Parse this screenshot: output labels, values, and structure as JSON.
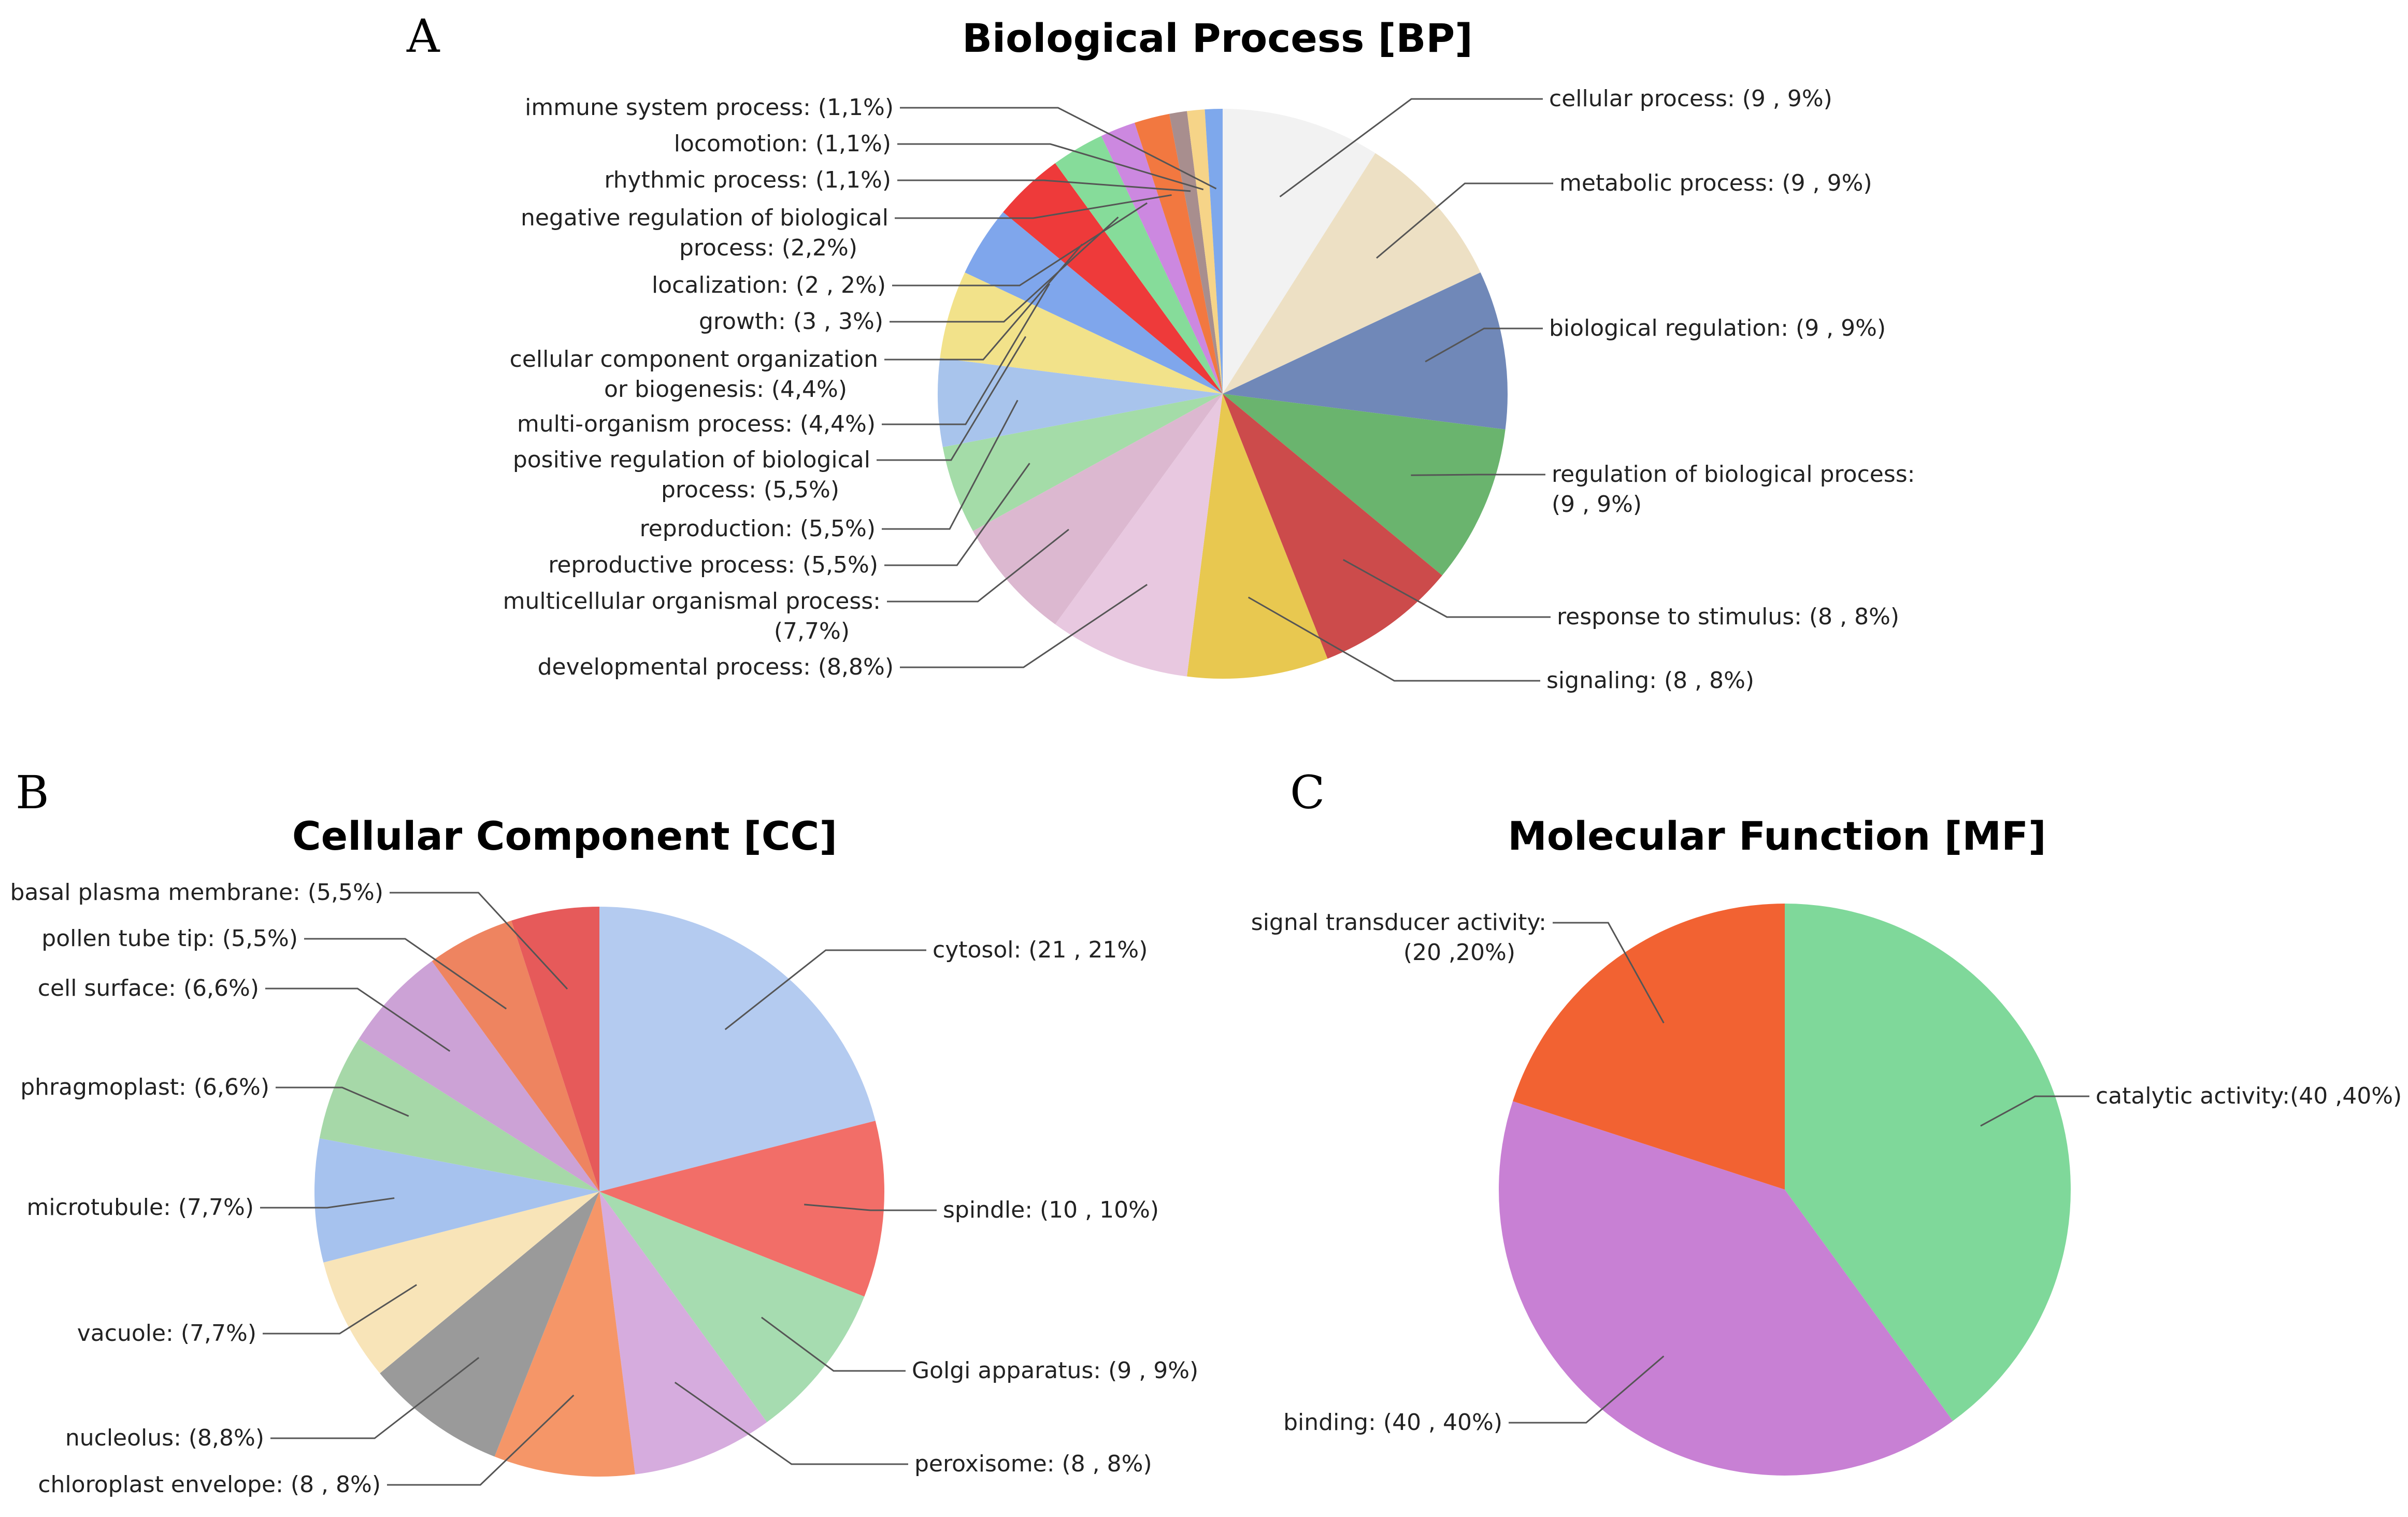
{
  "panel_letters": [
    "A",
    "B",
    "C"
  ],
  "chart_data": [
    {
      "type": "pie",
      "title": "Biological Process [BP]",
      "slices": [
        {
          "label": "cellular process: (9 , 9%)",
          "value": 9,
          "color": "#f2f2f2"
        },
        {
          "label": "metabolic process: (9 , 9%)",
          "value": 9,
          "color": "#ede0c4"
        },
        {
          "label": "biological regulation: (9 , 9%)",
          "value": 9,
          "color": "#7088b8"
        },
        {
          "label": "regulation of biological process:\n(9 , 9%)",
          "value": 9,
          "color": "#6ab46e"
        },
        {
          "label": "response to stimulus: (8 , 8%)",
          "value": 8,
          "color": "#cc4b4b"
        },
        {
          "label": "signaling: (8 , 8%)",
          "value": 8,
          "color": "#e8c850"
        },
        {
          "label": "developmental process: (8,8%)",
          "value": 8,
          "color": "#e8c8e0"
        },
        {
          "label": "multicellular organismal process:\n(7,7%)",
          "value": 7,
          "color": "#dcb8d0"
        },
        {
          "label": "reproductive process: (5,5%)",
          "value": 5,
          "color": "#a4dca8"
        },
        {
          "label": "reproduction: (5,5%)",
          "value": 5,
          "color": "#a8c4ec"
        },
        {
          "label": "positive regulation of biological\nprocess: (5,5%)",
          "value": 5,
          "color": "#f2e28a"
        },
        {
          "label": "multi-organism process: (4,4%)",
          "value": 4,
          "color": "#7fa6ec"
        },
        {
          "label": "cellular component organization\nor biogenesis: (4,4%)",
          "value": 4,
          "color": "#ee3a3a"
        },
        {
          "label": "growth: (3 , 3%)",
          "value": 3,
          "color": "#86dc9a"
        },
        {
          "label": "localization: (2 , 2%)",
          "value": 2,
          "color": "#cc88e0"
        },
        {
          "label": "negative regulation of biological\nprocess: (2,2%)",
          "value": 2,
          "color": "#f27840"
        },
        {
          "label": "rhythmic process: (1,1%)",
          "value": 1,
          "color": "#a88e8e"
        },
        {
          "label": "locomotion: (1,1%)",
          "value": 1,
          "color": "#f6d488"
        },
        {
          "label": "immune system process: (1,1%)",
          "value": 1,
          "color": "#7ea8ec"
        }
      ]
    },
    {
      "type": "pie",
      "title": "Cellular Component [CC]",
      "slices": [
        {
          "label": "cytosol: (21 , 21%)",
          "value": 21,
          "color": "#b4cbf0"
        },
        {
          "label": "spindle: (10 , 10%)",
          "value": 10,
          "color": "#f26e68"
        },
        {
          "label": "Golgi apparatus: (9 , 9%)",
          "value": 9,
          "color": "#a6dcb0"
        },
        {
          "label": "peroxisome: (8 , 8%)",
          "value": 8,
          "color": "#d6acde"
        },
        {
          "label": "chloroplast envelope: (8 , 8%)",
          "value": 8,
          "color": "#f59668"
        },
        {
          "label": "nucleolus: (8,8%)",
          "value": 8,
          "color": "#9a9a9a"
        },
        {
          "label": "vacuole: (7,7%)",
          "value": 7,
          "color": "#f8e4b8"
        },
        {
          "label": "microtubule: (7,7%)",
          "value": 7,
          "color": "#a6c2ee"
        },
        {
          "label": "phragmoplast: (6,6%)",
          "value": 6,
          "color": "#a6d8a8"
        },
        {
          "label": "cell surface: (6,6%)",
          "value": 6,
          "color": "#cca2d6"
        },
        {
          "label": "pollen tube tip: (5,5%)",
          "value": 5,
          "color": "#ee8460"
        },
        {
          "label": "basal plasma membrane: (5,5%)",
          "value": 5,
          "color": "#e65a5a"
        }
      ]
    },
    {
      "type": "pie",
      "title": "Molecular Function [MF]",
      "slices": [
        {
          "label": "catalytic activity:(40 ,40%)",
          "value": 40,
          "color": "#7fd89a"
        },
        {
          "label": "binding: (40 , 40%)",
          "value": 40,
          "color": "#c880d4"
        },
        {
          "label": "signal transducer activity:\n(20 ,20%)",
          "value": 20,
          "color": "#f26232"
        }
      ]
    }
  ]
}
